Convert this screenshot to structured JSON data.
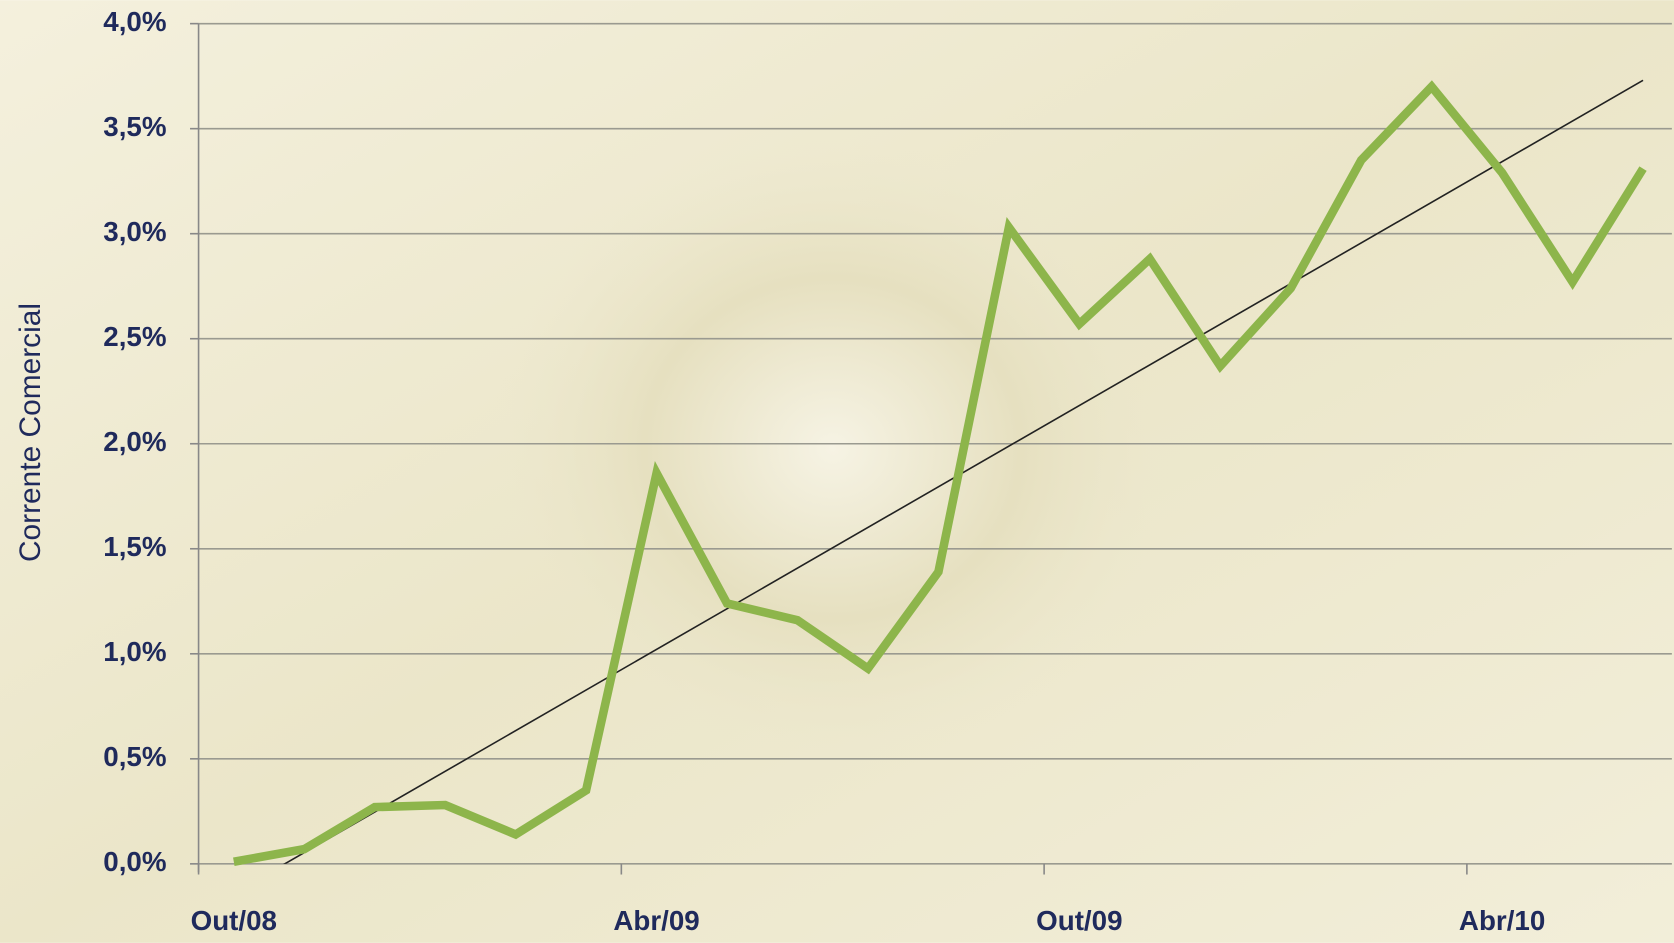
{
  "chart_data": {
    "type": "line",
    "ylabel": "Corrente Comercial",
    "categories": [
      "Out/08",
      null,
      null,
      null,
      null,
      null,
      "Abr/09",
      null,
      null,
      null,
      null,
      null,
      "Out/09",
      null,
      null,
      null,
      null,
      null,
      "Abr/10",
      null,
      null
    ],
    "series": [
      {
        "color": "#8db54b",
        "values": [
          0.01,
          0.07,
          0.27,
          0.28,
          0.14,
          0.35,
          1.86,
          1.24,
          1.16,
          0.93,
          1.39,
          3.03,
          2.57,
          2.88,
          2.37,
          2.74,
          3.35,
          3.7,
          3.29,
          2.77,
          3.31
        ]
      }
    ],
    "trend": {
      "color": "#222222",
      "values": [
        -0.14,
        3.73
      ]
    },
    "ylim": [
      0,
      4
    ],
    "yticks": [
      {
        "value": 0,
        "label": "0,0%"
      },
      {
        "value": 0.5,
        "label": "0,5%"
      },
      {
        "value": 1,
        "label": "1,0%"
      },
      {
        "value": 1.5,
        "label": "1,5%"
      },
      {
        "value": 2,
        "label": "2,0%"
      },
      {
        "value": 2.5,
        "label": "2,5%"
      },
      {
        "value": 3,
        "label": "3,0%"
      },
      {
        "value": 3.5,
        "label": "3,5%"
      },
      {
        "value": 4,
        "label": "4,0%"
      }
    ],
    "grid": true
  }
}
